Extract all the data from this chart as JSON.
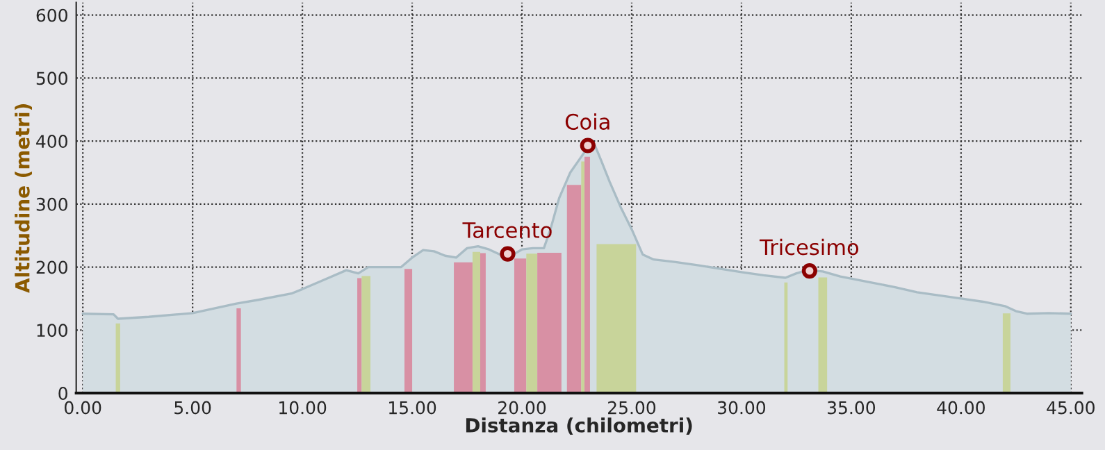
{
  "chart_data": {
    "type": "area",
    "xlabel": "Distanza (chilometri)",
    "ylabel": "Altitudine (metri)",
    "series": [
      {
        "color": "#a9bcc5",
        "x": [
          0,
          1.4,
          1.6,
          3,
          5,
          7,
          8,
          9.5,
          10,
          11,
          12,
          12.55,
          13,
          14.5,
          15,
          15.5,
          16,
          16.5,
          17,
          17.5,
          18,
          18.5,
          19,
          19.5,
          20,
          20.5,
          21,
          21.3,
          21.7,
          22.2,
          22.6,
          23,
          23.3,
          23.6,
          24,
          24.5,
          25,
          25.5,
          26,
          27,
          28,
          30,
          31,
          32,
          32.5,
          33,
          33.7,
          34.5,
          36,
          37,
          38,
          40,
          41,
          42,
          42.5,
          43,
          44,
          45
        ],
        "values": [
          126,
          125,
          118,
          121,
          127,
          142,
          148,
          158,
          165,
          180,
          195,
          190,
          200,
          200,
          215,
          227,
          225,
          218,
          215,
          230,
          233,
          228,
          220,
          218,
          228,
          230,
          230,
          260,
          310,
          350,
          370,
          390,
          395,
          370,
          335,
          295,
          260,
          220,
          212,
          208,
          203,
          192,
          187,
          183,
          190,
          195,
          193,
          185,
          175,
          168,
          160,
          150,
          145,
          138,
          130,
          126,
          127,
          126
        ]
      }
    ],
    "xlim": [
      -0.3,
      45.5
    ],
    "ylim": [
      0,
      620
    ],
    "xticks": [
      {
        "value": 0,
        "label": "0.00"
      },
      {
        "value": 5,
        "label": "5.00"
      },
      {
        "value": 10,
        "label": "10.00"
      },
      {
        "value": 15,
        "label": "15.00"
      },
      {
        "value": 20,
        "label": "20.00"
      },
      {
        "value": 25,
        "label": "25.00"
      },
      {
        "value": 30,
        "label": "30.00"
      },
      {
        "value": 35,
        "label": "35.00"
      },
      {
        "value": 40,
        "label": "40.00"
      },
      {
        "value": 45,
        "label": "45.00"
      }
    ],
    "yticks": [
      0,
      100,
      200,
      300,
      400,
      500,
      600
    ],
    "grid": true,
    "bands": [
      {
        "axis": "x",
        "from": 1.5,
        "to": 1.7,
        "color": "#c8d49a"
      },
      {
        "axis": "x",
        "from": 7.0,
        "to": 7.2,
        "color": "#d890a4"
      },
      {
        "axis": "x",
        "from": 12.5,
        "to": 12.7,
        "color": "#d890a4"
      },
      {
        "axis": "x",
        "from": 12.7,
        "to": 13.1,
        "color": "#c8d49a"
      },
      {
        "axis": "x",
        "from": 14.65,
        "to": 15.0,
        "color": "#d890a4"
      },
      {
        "axis": "x",
        "from": 16.9,
        "to": 17.75,
        "color": "#d890a4"
      },
      {
        "axis": "x",
        "from": 17.75,
        "to": 18.1,
        "color": "#c8d49a"
      },
      {
        "axis": "x",
        "from": 18.1,
        "to": 18.35,
        "color": "#d890a4"
      },
      {
        "axis": "x",
        "from": 19.65,
        "to": 20.2,
        "color": "#d890a4"
      },
      {
        "axis": "x",
        "from": 20.2,
        "to": 20.7,
        "color": "#c8d49a"
      },
      {
        "axis": "x",
        "from": 20.7,
        "to": 21.8,
        "color": "#d890a4"
      },
      {
        "axis": "x",
        "from": 22.05,
        "to": 22.7,
        "color": "#d890a4"
      },
      {
        "axis": "x",
        "from": 22.7,
        "to": 22.85,
        "color": "#c8d49a"
      },
      {
        "axis": "x",
        "from": 22.85,
        "to": 23.1,
        "color": "#d890a4"
      },
      {
        "axis": "x",
        "from": 23.4,
        "to": 25.2,
        "color": "#c8d49a"
      },
      {
        "axis": "x",
        "from": 31.95,
        "to": 32.1,
        "color": "#c8d49a"
      },
      {
        "axis": "x",
        "from": 33.5,
        "to": 33.9,
        "color": "#c8d49a"
      },
      {
        "axis": "x",
        "from": 41.9,
        "to": 42.25,
        "color": "#c8d49a"
      }
    ],
    "annotations": [
      {
        "text": "Tarcento",
        "x": 19.35,
        "y": 221
      },
      {
        "text": "Coia",
        "x": 23.0,
        "y": 393
      },
      {
        "text": "Tricesimo",
        "x": 33.1,
        "y": 194
      }
    ]
  }
}
